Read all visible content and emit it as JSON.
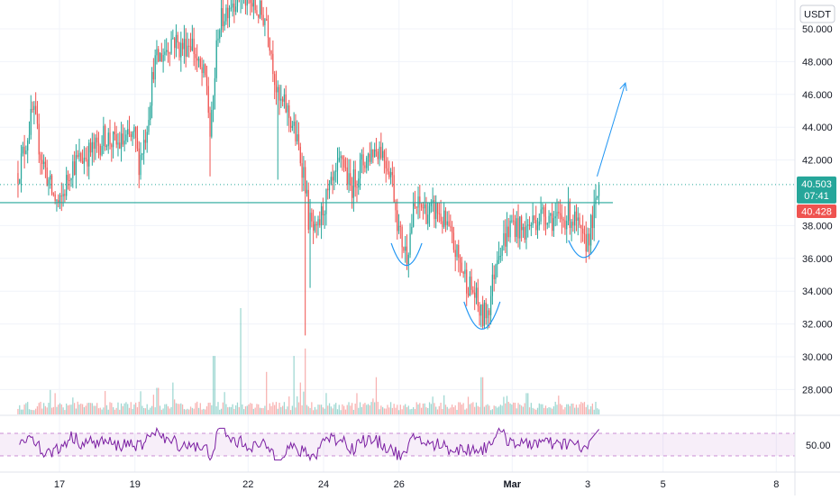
{
  "currency": {
    "label": "USDT"
  },
  "price_axis": {
    "ticks": [
      {
        "value": 50,
        "label": "50.000"
      },
      {
        "value": 48,
        "label": "48.000"
      },
      {
        "value": 46,
        "label": "46.000"
      },
      {
        "value": 44,
        "label": "44.000"
      },
      {
        "value": 42,
        "label": "42.000"
      },
      {
        "value": 38,
        "label": "38.000"
      },
      {
        "value": 36,
        "label": "36.000"
      },
      {
        "value": 34,
        "label": "34.000"
      },
      {
        "value": 32,
        "label": "32.000"
      },
      {
        "value": 30,
        "label": "30.000"
      },
      {
        "value": 28,
        "label": "28.000"
      }
    ]
  },
  "last_price": {
    "value": 40.503,
    "label": "40.503",
    "countdown": "07:41",
    "color": "#26a69a"
  },
  "prev_price": {
    "value": 40.428,
    "label": "40.428",
    "color": "#ef5350"
  },
  "rsi_axis": {
    "label": "50.00",
    "band_color": "#9c27b0"
  },
  "time_axis": {
    "labels": [
      {
        "day": 17,
        "label": "17",
        "bold": false
      },
      {
        "day": 19,
        "label": "19",
        "bold": false
      },
      {
        "day": 22,
        "label": "22",
        "bold": false
      },
      {
        "day": 24,
        "label": "24",
        "bold": false
      },
      {
        "day": 26,
        "label": "26",
        "bold": false
      },
      {
        "day": 29,
        "label": "Mar",
        "bold": true
      },
      {
        "day": 31,
        "label": "3",
        "bold": false
      },
      {
        "day": 33,
        "label": "5",
        "bold": false
      },
      {
        "day": 36,
        "label": "8",
        "bold": false
      }
    ]
  },
  "colors": {
    "up": "#26a69a",
    "down": "#ef5350",
    "drawing": "#2196f3",
    "level": "#26a69a",
    "rsi": "#7b1fa2"
  },
  "annotations": {
    "neckline_price": 39.4,
    "target_arrow": {
      "from": {
        "day": 31.25,
        "price": 41.0
      },
      "to": {
        "day": 32.0,
        "price": 46.7
      }
    },
    "troughs": [
      {
        "day": 26.2,
        "price": 35.5
      },
      {
        "day": 28.2,
        "price": 31.6
      },
      {
        "day": 30.9,
        "price": 36.0
      }
    ]
  },
  "chart_data": {
    "type": "candlestick",
    "title": "",
    "xlabel": "",
    "ylabel": "",
    "x_range_days": [
      15.9,
      37
    ],
    "ylim": [
      27,
      52.2
    ],
    "price_path": [
      [
        15.9,
        41.2
      ],
      [
        16.1,
        43.0
      ],
      [
        16.3,
        45.0
      ],
      [
        16.5,
        42.4
      ],
      [
        16.8,
        40.0
      ],
      [
        17.0,
        39.1
      ],
      [
        17.3,
        41.6
      ],
      [
        17.7,
        42.3
      ],
      [
        18.0,
        42.8
      ],
      [
        18.2,
        43.5
      ],
      [
        18.5,
        42.9
      ],
      [
        18.8,
        43.2
      ],
      [
        19.0,
        43.4
      ],
      [
        19.1,
        41.8
      ],
      [
        19.3,
        43.8
      ],
      [
        19.5,
        47.8
      ],
      [
        19.8,
        48.7
      ],
      [
        20.0,
        49.5
      ],
      [
        20.2,
        48.8
      ],
      [
        20.5,
        49.3
      ],
      [
        20.7,
        47.5
      ],
      [
        20.9,
        46.8
      ],
      [
        21.0,
        43.2
      ],
      [
        21.2,
        50.0
      ],
      [
        21.5,
        51.6
      ],
      [
        21.8,
        52.1
      ],
      [
        22.2,
        51.2
      ],
      [
        22.5,
        50.6
      ],
      [
        22.8,
        45.5
      ],
      [
        23.0,
        45.2
      ],
      [
        23.2,
        44.0
      ],
      [
        23.5,
        41.0
      ],
      [
        23.6,
        38.4
      ],
      [
        23.8,
        37.2
      ],
      [
        24.0,
        39.2
      ],
      [
        24.3,
        40.7
      ],
      [
        24.5,
        42.2
      ],
      [
        24.7,
        40.2
      ],
      [
        25.0,
        41.7
      ],
      [
        25.3,
        42.6
      ],
      [
        25.5,
        42.8
      ],
      [
        25.8,
        41.2
      ],
      [
        26.0,
        37.6
      ],
      [
        26.2,
        36.2
      ],
      [
        26.4,
        39.0
      ],
      [
        26.6,
        39.2
      ],
      [
        26.8,
        38.7
      ],
      [
        27.0,
        39.0
      ],
      [
        27.3,
        37.7
      ],
      [
        27.5,
        36.4
      ],
      [
        27.8,
        34.6
      ],
      [
        28.0,
        33.8
      ],
      [
        28.2,
        32.3
      ],
      [
        28.4,
        33.2
      ],
      [
        28.6,
        36.5
      ],
      [
        28.8,
        37.2
      ],
      [
        29.0,
        38.2
      ],
      [
        29.3,
        37.6
      ],
      [
        29.6,
        38.4
      ],
      [
        29.9,
        38.8
      ],
      [
        30.2,
        38.2
      ],
      [
        30.5,
        38.7
      ],
      [
        30.7,
        38.1
      ],
      [
        30.9,
        36.7
      ],
      [
        31.05,
        37.6
      ],
      [
        31.2,
        38.9
      ],
      [
        31.3,
        40.5
      ]
    ],
    "volume_spikes": [
      {
        "day": 21.1,
        "value": 0.55
      },
      {
        "day": 21.8,
        "value": 1.0
      },
      {
        "day": 22.5,
        "value": 0.4
      },
      {
        "day": 23.2,
        "value": 0.55
      },
      {
        "day": 23.5,
        "value": 0.62
      },
      {
        "day": 23.4,
        "value": 0.3
      },
      {
        "day": 20.0,
        "value": 0.3
      },
      {
        "day": 19.6,
        "value": 0.25
      },
      {
        "day": 25.4,
        "value": 0.35
      },
      {
        "day": 27.2,
        "value": 0.18
      },
      {
        "day": 28.2,
        "value": 0.35
      },
      {
        "day": 29.4,
        "value": 0.2
      },
      {
        "day": 18.2,
        "value": 0.22
      },
      {
        "day": 16.9,
        "value": 0.2
      },
      {
        "day": 24.9,
        "value": 0.2
      }
    ]
  }
}
